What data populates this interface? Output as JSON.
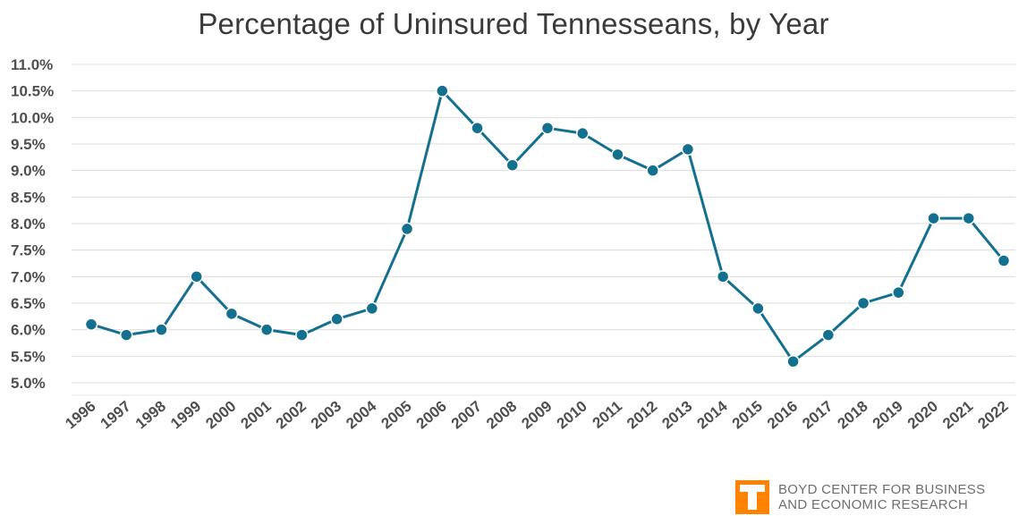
{
  "chart_data": {
    "type": "line",
    "title": "Percentage of Uninsured Tennesseans, by Year",
    "xlabel": "",
    "ylabel": "",
    "ylim": [
      5.0,
      11.0
    ],
    "yticks": [
      "11.0%",
      "10.5%",
      "10.0%",
      "9.5%",
      "9.0%",
      "8.5%",
      "8.0%",
      "7.5%",
      "7.0%",
      "6.5%",
      "6.0%",
      "5.5%",
      "5.0%"
    ],
    "ytick_values": [
      11.0,
      10.5,
      10.0,
      9.5,
      9.0,
      8.5,
      8.0,
      7.5,
      7.0,
      6.5,
      6.0,
      5.5,
      5.0
    ],
    "categories": [
      "1996",
      "1997",
      "1998",
      "1999",
      "2000",
      "2001",
      "2002",
      "2003",
      "2004",
      "2005",
      "2006",
      "2007",
      "2008",
      "2009",
      "2010",
      "2011",
      "2012",
      "2013",
      "2014",
      "2015",
      "2016",
      "2017",
      "2018",
      "2019",
      "2020",
      "2021",
      "2022"
    ],
    "series": [
      {
        "values": [
          6.1,
          5.9,
          6.0,
          7.0,
          6.3,
          6.0,
          5.9,
          6.2,
          6.4,
          7.9,
          10.5,
          9.8,
          9.1,
          9.8,
          9.7,
          9.3,
          9.0,
          9.4,
          7.0,
          6.4,
          5.4,
          5.9,
          6.5,
          6.7,
          8.1,
          8.1,
          7.3
        ],
        "color": "#14708f"
      }
    ],
    "grid": true,
    "legend": "none",
    "colors": {
      "line": "#14708f",
      "grid": "#dcdcdc",
      "tick_text": "#4f4f4f",
      "title_text": "#3a3a3a"
    }
  },
  "logo": {
    "line1": "BOYD CENTER FOR BUSINESS",
    "line2": "AND ECONOMIC RESEARCH",
    "mark_color": "#ff8200",
    "icon": "university-t-logo-icon"
  }
}
